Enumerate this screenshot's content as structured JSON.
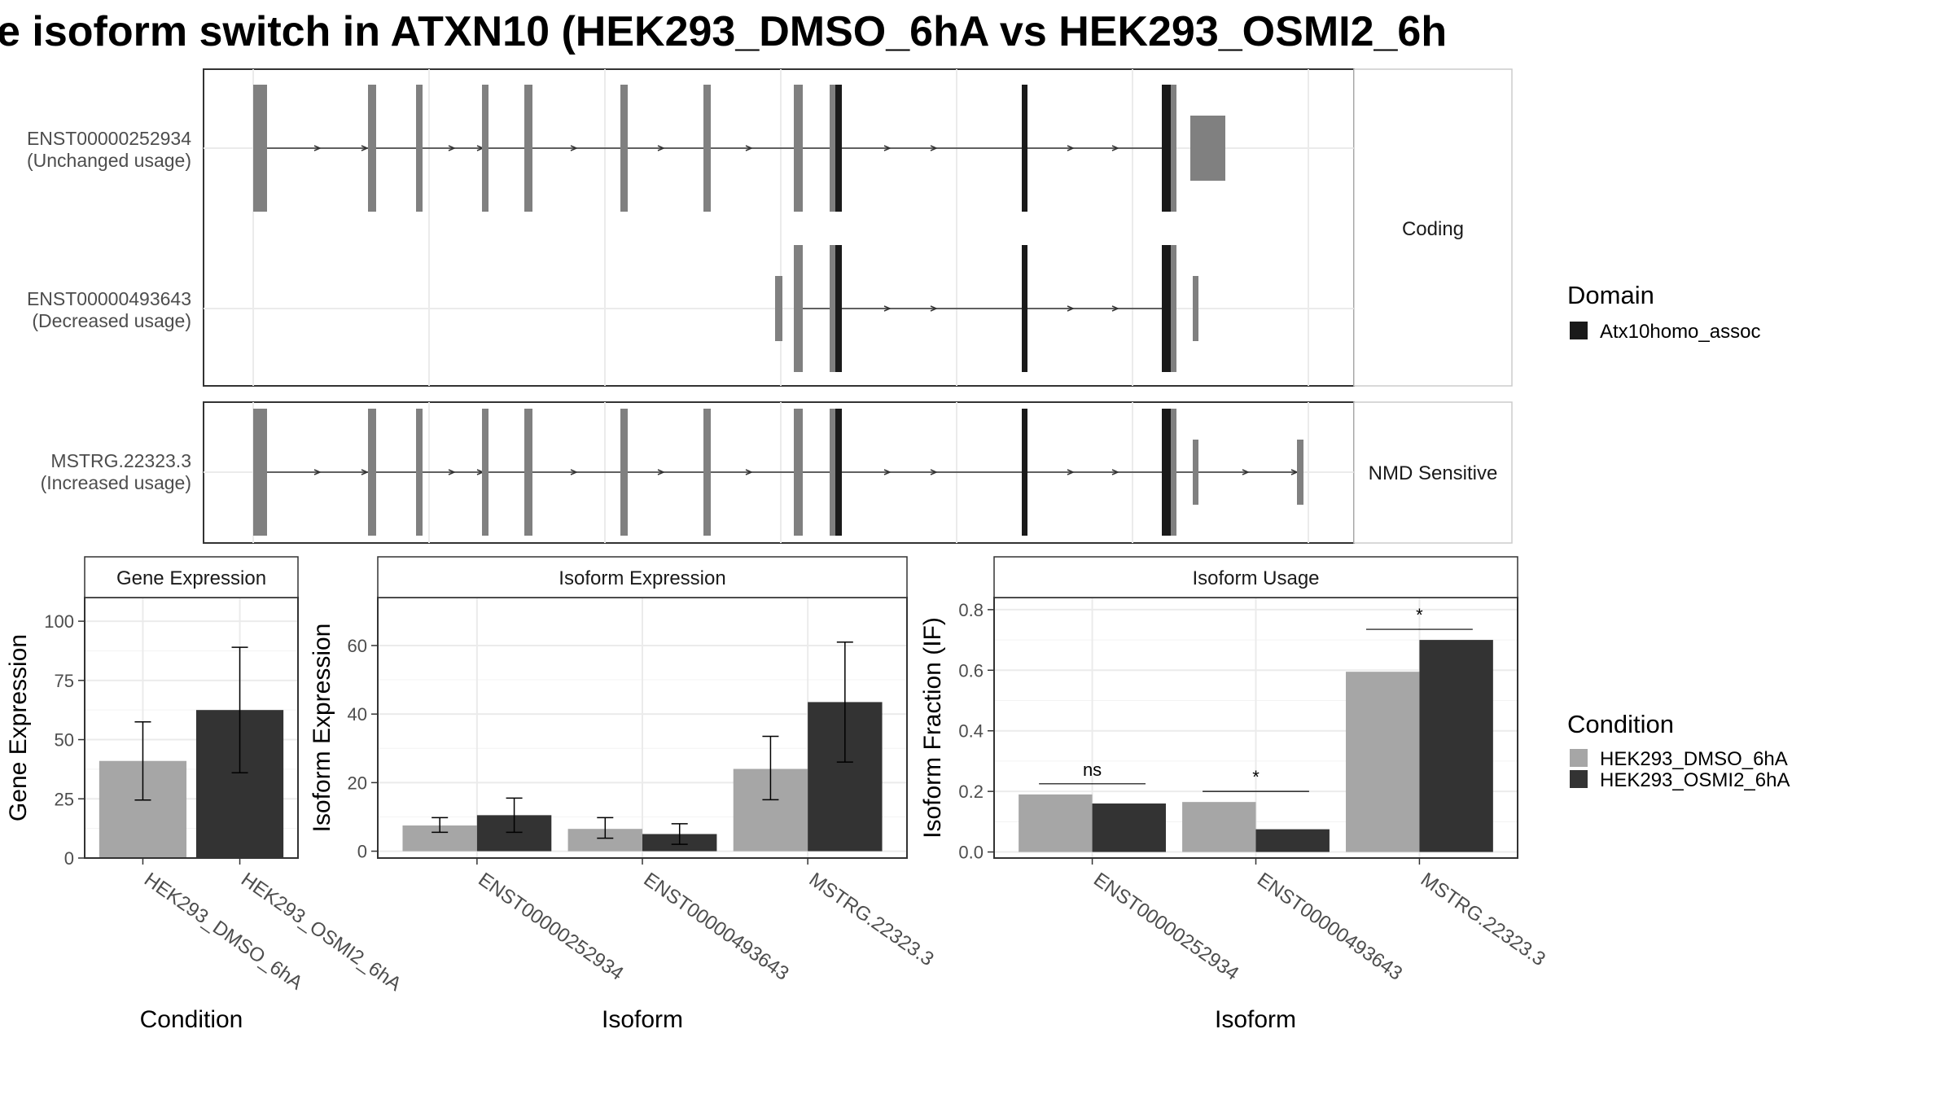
{
  "title": "e isoform switch in ATXN10 (HEK293_DMSO_6hA vs HEK293_OSMI2_6h",
  "colors": {
    "exon": "#808080",
    "domain": "#1a1a1a",
    "condition1": "#a6a6a6",
    "condition2": "#333333",
    "grid": "#ebebeb",
    "border": "#333333"
  },
  "structure": {
    "facets": [
      {
        "label": "Coding",
        "transcripts": [
          {
            "id": "ENST00000252934",
            "usage": "(Unchanged usage)"
          },
          {
            "id": "ENST00000493643",
            "usage": "(Decreased usage)"
          }
        ]
      },
      {
        "label": "NMD Sensitive",
        "transcripts": [
          {
            "id": "MSTRG.22323.3",
            "usage": "(Increased usage)"
          }
        ]
      }
    ]
  },
  "legends": {
    "domain": {
      "title": "Domain",
      "items": [
        {
          "label": "Atx10homo_assoc",
          "color": "#1a1a1a"
        }
      ]
    },
    "condition": {
      "title": "Condition",
      "items": [
        {
          "label": "HEK293_DMSO_6hA",
          "color": "#a6a6a6"
        },
        {
          "label": "HEK293_OSMI2_6hA",
          "color": "#333333"
        }
      ]
    }
  },
  "chart_data": [
    {
      "type": "bar",
      "title": "Gene Expression",
      "xlabel": "Condition",
      "ylabel": "Gene Expression",
      "ylim": [
        0,
        110
      ],
      "yticks": [
        0,
        25,
        50,
        75,
        100
      ],
      "categories": [
        "HEK293_DMSO_6hA",
        "HEK293_OSMI2_6hA"
      ],
      "values": [
        41,
        62.5
      ],
      "error_low": [
        24.5,
        36
      ],
      "error_high": [
        57.5,
        89
      ]
    },
    {
      "type": "bar",
      "title": "Isoform Expression",
      "xlabel": "Isoform",
      "ylabel": "Isoform Expression",
      "ylim": [
        -2,
        74
      ],
      "yticks": [
        0,
        20,
        40,
        60
      ],
      "categories": [
        "ENST00000252934",
        "ENST00000493643",
        "MSTRG.22323.3"
      ],
      "series": [
        {
          "name": "HEK293_DMSO_6hA",
          "values": [
            7.5,
            6.5,
            24
          ],
          "error_low": [
            5.5,
            3.8,
            15
          ],
          "error_high": [
            9.8,
            9.8,
            33.5
          ]
        },
        {
          "name": "HEK293_OSMI2_6hA",
          "values": [
            10.5,
            5,
            43.5
          ],
          "error_low": [
            5.5,
            2,
            26
          ],
          "error_high": [
            15.5,
            8,
            61
          ]
        }
      ]
    },
    {
      "type": "bar",
      "title": "Isoform Usage",
      "xlabel": "Isoform",
      "ylabel": "Isoform Fraction (IF)",
      "ylim": [
        -0.02,
        0.84
      ],
      "yticks": [
        0.0,
        0.2,
        0.4,
        0.6,
        0.8
      ],
      "categories": [
        "ENST00000252934",
        "ENST00000493643",
        "MSTRG.22323.3"
      ],
      "series": [
        {
          "name": "HEK293_DMSO_6hA",
          "values": [
            0.19,
            0.165,
            0.595
          ]
        },
        {
          "name": "HEK293_OSMI2_6hA",
          "values": [
            0.16,
            0.075,
            0.7
          ]
        }
      ],
      "significance": [
        "ns",
        "*",
        "*"
      ]
    }
  ]
}
